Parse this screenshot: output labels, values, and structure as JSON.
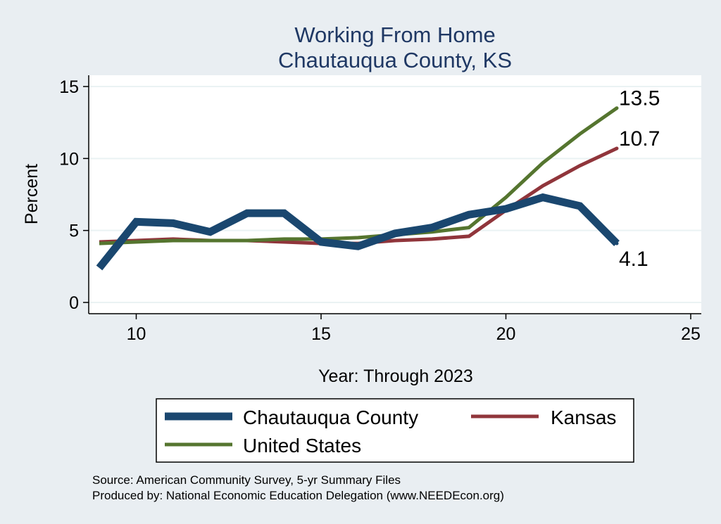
{
  "chart_data": {
    "type": "line",
    "title": "Working From Home",
    "subtitle": "Chautauqua County, KS",
    "xlabel": "Year: Through 2023",
    "ylabel": "Percent",
    "xlim": [
      9,
      25
    ],
    "ylim": [
      0,
      15
    ],
    "xticks": [
      10,
      15,
      20,
      25
    ],
    "yticks": [
      0,
      5,
      10,
      15
    ],
    "grid": true,
    "legend_position": "bottom",
    "x": [
      9,
      10,
      11,
      12,
      13,
      14,
      15,
      16,
      17,
      18,
      19,
      20,
      21,
      22,
      23
    ],
    "series": [
      {
        "name": "Chautauqua County",
        "color": "#1a476f",
        "values": [
          2.4,
          5.6,
          5.5,
          4.9,
          6.2,
          6.2,
          4.2,
          3.9,
          4.8,
          5.2,
          6.1,
          6.5,
          7.3,
          6.7,
          4.1
        ],
        "end_label": "4.1"
      },
      {
        "name": "Kansas",
        "color": "#90353b",
        "values": [
          4.2,
          4.3,
          4.4,
          4.3,
          4.3,
          4.2,
          4.1,
          4.1,
          4.3,
          4.4,
          4.6,
          6.4,
          8.1,
          9.5,
          10.7
        ],
        "end_label": "10.7"
      },
      {
        "name": "United States",
        "color": "#55752f",
        "values": [
          4.1,
          4.2,
          4.3,
          4.3,
          4.3,
          4.4,
          4.4,
          4.5,
          4.7,
          4.9,
          5.2,
          7.3,
          9.7,
          11.7,
          13.5
        ],
        "end_label": "13.5"
      }
    ]
  },
  "notes": {
    "source": "Source: American Community Survey, 5-yr Summary Files",
    "producer": "Produced by: National Economic Education Delegation (www.NEEDEcon.org)"
  }
}
